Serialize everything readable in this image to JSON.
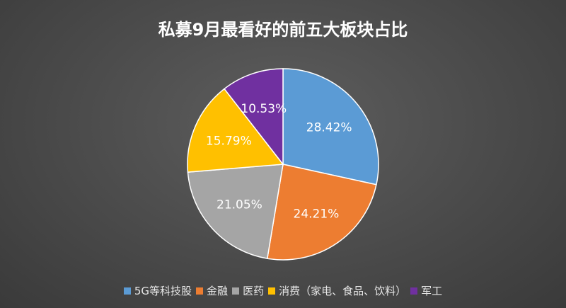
{
  "chart_data": {
    "type": "pie",
    "title": "私募9月最看好的前五大板块占比",
    "legend_position": "bottom",
    "slices": [
      {
        "label": "5G等科技股",
        "value": 28.42,
        "display": "28.42%",
        "color": "#5b9bd5"
      },
      {
        "label": "金融",
        "value": 24.21,
        "display": "24.21%",
        "color": "#ed7d31"
      },
      {
        "label": "医药",
        "value": 21.05,
        "display": "21.05%",
        "color": "#a5a5a5"
      },
      {
        "label": "消费（家电、食品、饮料）",
        "value": 15.79,
        "display": "15.79%",
        "color": "#ffc000"
      },
      {
        "label": "军工",
        "value": 10.53,
        "display": "10.53%",
        "color": "#7030a0"
      }
    ]
  }
}
